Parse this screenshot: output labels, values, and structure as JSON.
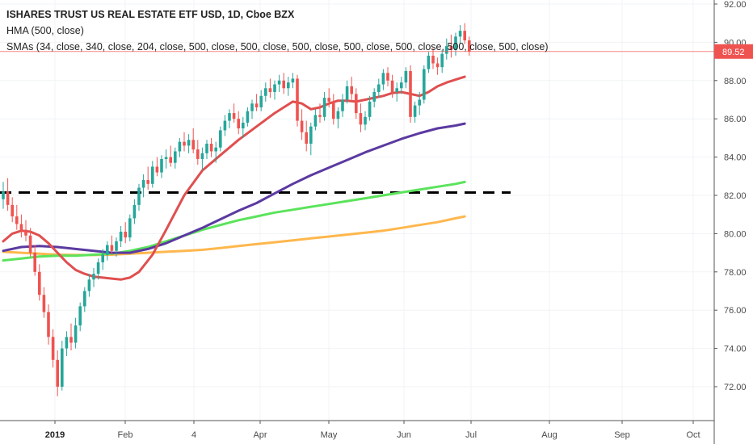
{
  "legend": {
    "title": "ISHARES TRUST US REAL ESTATE ETF USD, 1D, Cboe BZX",
    "hma": "HMA (500, close)",
    "smas": "SMAs (34, close, 340, close, 204, close, 500, close, 500, close, 500, close, 500, close, 500, close, 500, close, 500, close)"
  },
  "price_label": "89.52",
  "colors": {
    "up": "#26a69a",
    "down": "#ef5350",
    "hma": "#e04f4f",
    "sma_purple": "#5b3aa0",
    "sma_green": "#5be35b",
    "sma_orange": "#ffb74d",
    "price_line": "#ef5350",
    "dashed": "#000000"
  },
  "chart_data": {
    "type": "line",
    "title": "ISHARES TRUST US REAL ESTATE ETF USD, 1D, Cboe BZX",
    "ylim": [
      70.2,
      92.4
    ],
    "yticks": [
      72.0,
      74.0,
      76.0,
      78.0,
      80.0,
      82.0,
      84.0,
      86.0,
      88.0,
      90.0,
      92.0
    ],
    "xticks": [
      "2019",
      "Feb",
      "4",
      "Apr",
      "May",
      "Jun",
      "Jul",
      "Aug",
      "Sep",
      "Oct"
    ],
    "last_price": 89.52,
    "horizontal_level": 82.15,
    "candles_ohlc": [
      [
        81.8,
        82.7,
        81.3,
        82.2
      ],
      [
        82.2,
        82.9,
        81.2,
        81.5
      ],
      [
        81.5,
        81.9,
        80.6,
        80.9
      ],
      [
        80.9,
        81.5,
        80.2,
        80.5
      ],
      [
        80.5,
        81.0,
        79.8,
        80.2
      ],
      [
        80.2,
        80.7,
        79.6,
        79.9
      ],
      [
        79.9,
        80.3,
        78.8,
        79.0
      ],
      [
        79.0,
        79.4,
        77.8,
        78.0
      ],
      [
        78.0,
        78.4,
        76.5,
        76.8
      ],
      [
        76.8,
        77.2,
        75.6,
        75.9
      ],
      [
        75.9,
        76.3,
        74.2,
        74.6
      ],
      [
        74.6,
        75.0,
        73.0,
        73.4
      ],
      [
        73.4,
        73.9,
        71.5,
        72.0
      ],
      [
        72.0,
        74.4,
        71.8,
        74.0
      ],
      [
        74.0,
        74.9,
        73.6,
        74.6
      ],
      [
        74.6,
        75.3,
        73.9,
        74.3
      ],
      [
        74.3,
        75.6,
        74.0,
        75.2
      ],
      [
        75.2,
        76.4,
        74.9,
        76.2
      ],
      [
        76.2,
        77.2,
        75.9,
        77.0
      ],
      [
        77.0,
        77.9,
        76.7,
        77.6
      ],
      [
        77.6,
        78.2,
        77.2,
        77.9
      ],
      [
        77.9,
        78.7,
        77.6,
        78.5
      ],
      [
        78.5,
        79.2,
        78.1,
        78.9
      ],
      [
        78.9,
        79.6,
        78.6,
        79.4
      ],
      [
        79.4,
        79.9,
        78.9,
        79.1
      ],
      [
        79.1,
        79.8,
        78.8,
        79.6
      ],
      [
        79.6,
        80.4,
        79.3,
        80.1
      ],
      [
        80.1,
        80.6,
        79.5,
        79.8
      ],
      [
        79.8,
        81.0,
        79.6,
        80.8
      ],
      [
        80.8,
        81.8,
        80.5,
        81.5
      ],
      [
        81.5,
        82.6,
        81.2,
        82.4
      ],
      [
        82.4,
        83.1,
        81.9,
        82.8
      ],
      [
        82.8,
        83.5,
        82.3,
        82.6
      ],
      [
        82.6,
        83.8,
        82.4,
        83.5
      ],
      [
        83.5,
        84.0,
        83.0,
        83.2
      ],
      [
        83.2,
        84.1,
        82.9,
        83.9
      ],
      [
        83.9,
        84.4,
        83.4,
        84.0
      ],
      [
        84.0,
        84.6,
        83.5,
        83.7
      ],
      [
        83.7,
        84.5,
        83.4,
        84.3
      ],
      [
        84.3,
        85.0,
        84.0,
        84.8
      ],
      [
        84.8,
        85.3,
        84.3,
        84.6
      ],
      [
        84.6,
        85.2,
        84.2,
        84.9
      ],
      [
        84.9,
        85.5,
        84.2,
        84.4
      ],
      [
        84.4,
        84.9,
        83.6,
        83.9
      ],
      [
        83.9,
        84.5,
        83.3,
        84.2
      ],
      [
        84.2,
        84.9,
        83.9,
        84.7
      ],
      [
        84.7,
        85.0,
        84.0,
        84.3
      ],
      [
        84.3,
        84.8,
        83.7,
        84.5
      ],
      [
        84.5,
        85.6,
        84.3,
        85.4
      ],
      [
        85.4,
        86.2,
        85.1,
        85.9
      ],
      [
        85.9,
        86.5,
        85.5,
        86.3
      ],
      [
        86.3,
        86.8,
        85.8,
        86.0
      ],
      [
        86.0,
        86.4,
        85.2,
        85.5
      ],
      [
        85.5,
        86.1,
        85.0,
        85.8
      ],
      [
        85.8,
        86.6,
        85.6,
        86.4
      ],
      [
        86.4,
        87.0,
        86.0,
        86.8
      ],
      [
        86.8,
        87.3,
        86.4,
        86.6
      ],
      [
        86.6,
        87.5,
        86.4,
        87.2
      ],
      [
        87.2,
        87.9,
        86.9,
        87.6
      ],
      [
        87.6,
        88.1,
        87.1,
        87.4
      ],
      [
        87.4,
        88.0,
        87.0,
        87.8
      ],
      [
        87.8,
        88.3,
        87.4,
        88.0
      ],
      [
        88.0,
        88.4,
        87.3,
        87.6
      ],
      [
        87.6,
        88.2,
        87.2,
        87.9
      ],
      [
        87.9,
        88.4,
        87.6,
        88.1
      ],
      [
        88.1,
        88.3,
        85.6,
        85.9
      ],
      [
        85.9,
        86.5,
        84.9,
        85.3
      ],
      [
        85.3,
        85.9,
        84.3,
        84.7
      ],
      [
        84.7,
        85.8,
        84.1,
        85.6
      ],
      [
        85.6,
        86.5,
        85.4,
        86.2
      ],
      [
        86.2,
        86.8,
        85.8,
        86.1
      ],
      [
        86.1,
        87.4,
        85.9,
        87.1
      ],
      [
        87.1,
        87.6,
        86.6,
        86.9
      ],
      [
        86.9,
        87.3,
        85.7,
        86.0
      ],
      [
        86.0,
        86.6,
        85.5,
        86.4
      ],
      [
        86.4,
        87.3,
        86.1,
        87.0
      ],
      [
        87.0,
        88.0,
        86.8,
        87.7
      ],
      [
        87.7,
        88.2,
        87.0,
        87.3
      ],
      [
        87.3,
        87.6,
        86.0,
        86.3
      ],
      [
        86.3,
        86.8,
        85.3,
        85.7
      ],
      [
        85.7,
        86.4,
        85.4,
        86.1
      ],
      [
        86.1,
        87.2,
        85.9,
        86.9
      ],
      [
        86.9,
        87.6,
        86.6,
        87.4
      ],
      [
        87.4,
        88.1,
        87.1,
        87.8
      ],
      [
        87.8,
        88.6,
        87.5,
        88.4
      ],
      [
        88.4,
        88.7,
        87.7,
        88.0
      ],
      [
        88.0,
        88.3,
        87.1,
        87.4
      ],
      [
        87.4,
        87.9,
        86.9,
        87.6
      ],
      [
        87.6,
        88.2,
        87.3,
        87.9
      ],
      [
        87.9,
        88.7,
        87.6,
        88.5
      ],
      [
        88.5,
        88.8,
        85.8,
        86.1
      ],
      [
        86.1,
        86.9,
        85.8,
        86.7
      ],
      [
        86.7,
        87.4,
        86.2,
        87.0
      ],
      [
        87.0,
        88.8,
        86.8,
        88.6
      ],
      [
        88.6,
        89.5,
        88.4,
        89.3
      ],
      [
        89.3,
        89.7,
        88.6,
        88.9
      ],
      [
        88.9,
        89.2,
        88.3,
        88.7
      ],
      [
        88.7,
        89.6,
        88.4,
        89.4
      ],
      [
        89.4,
        90.2,
        89.1,
        89.8
      ],
      [
        89.8,
        90.4,
        89.2,
        89.6
      ],
      [
        89.6,
        90.5,
        89.3,
        90.3
      ],
      [
        90.3,
        90.9,
        89.9,
        90.6
      ],
      [
        90.6,
        91.0,
        89.9,
        90.1
      ],
      [
        90.1,
        90.3,
        89.3,
        89.52
      ]
    ],
    "series": [
      {
        "name": "HMA",
        "x": [
          0,
          2,
          4,
          6,
          8,
          10,
          12,
          14,
          16,
          18,
          20,
          22,
          24,
          26,
          28,
          30,
          33,
          36,
          40,
          44,
          48,
          52,
          56,
          60,
          64,
          66,
          68,
          70,
          72,
          74,
          76,
          78,
          80,
          82,
          84,
          86,
          88,
          90,
          92,
          94,
          96,
          98,
          100,
          102
        ],
        "values": [
          79.6,
          80.0,
          80.15,
          80.1,
          79.9,
          79.5,
          79.0,
          78.5,
          78.1,
          77.9,
          77.75,
          77.7,
          77.65,
          77.6,
          77.7,
          78.0,
          78.9,
          80.2,
          82.0,
          83.3,
          84.1,
          84.9,
          85.6,
          86.3,
          86.9,
          86.8,
          86.5,
          86.6,
          86.8,
          86.95,
          86.95,
          86.9,
          87.0,
          87.1,
          87.2,
          87.35,
          87.4,
          87.3,
          87.2,
          87.4,
          87.7,
          87.9,
          88.05,
          88.2
        ]
      },
      {
        "name": "SMA",
        "x": [
          0,
          4,
          8,
          12,
          16,
          20,
          24,
          28,
          32,
          36,
          40,
          44,
          48,
          52,
          56,
          60,
          64,
          68,
          72,
          76,
          80,
          84,
          88,
          92,
          96,
          100,
          102
        ],
        "values": [
          79.1,
          79.3,
          79.35,
          79.3,
          79.2,
          79.1,
          79.0,
          79.0,
          79.2,
          79.5,
          79.9,
          80.3,
          80.75,
          81.2,
          81.6,
          82.1,
          82.6,
          83.05,
          83.45,
          83.85,
          84.25,
          84.6,
          84.95,
          85.25,
          85.5,
          85.65,
          85.75
        ]
      },
      {
        "name": "SMA",
        "x": [
          0,
          4,
          8,
          12,
          16,
          20,
          24,
          28,
          32,
          36,
          40,
          44,
          48,
          52,
          56,
          60,
          64,
          68,
          72,
          76,
          80,
          84,
          88,
          92,
          96,
          100,
          102
        ],
        "values": [
          78.6,
          78.7,
          78.8,
          78.85,
          78.85,
          78.9,
          78.95,
          79.1,
          79.3,
          79.6,
          79.9,
          80.2,
          80.45,
          80.7,
          80.9,
          81.1,
          81.25,
          81.4,
          81.55,
          81.7,
          81.85,
          82.0,
          82.15,
          82.3,
          82.45,
          82.6,
          82.7
        ]
      },
      {
        "name": "SMA",
        "x": [
          0,
          4,
          8,
          12,
          16,
          20,
          24,
          28,
          32,
          36,
          40,
          44,
          48,
          52,
          56,
          60,
          64,
          68,
          72,
          76,
          80,
          84,
          88,
          92,
          96,
          100,
          102
        ],
        "values": [
          79.05,
          79.0,
          78.95,
          78.9,
          78.88,
          78.88,
          78.9,
          78.95,
          79.0,
          79.05,
          79.1,
          79.15,
          79.25,
          79.35,
          79.45,
          79.55,
          79.65,
          79.75,
          79.85,
          79.95,
          80.05,
          80.15,
          80.3,
          80.45,
          80.6,
          80.8,
          80.9
        ]
      }
    ]
  }
}
